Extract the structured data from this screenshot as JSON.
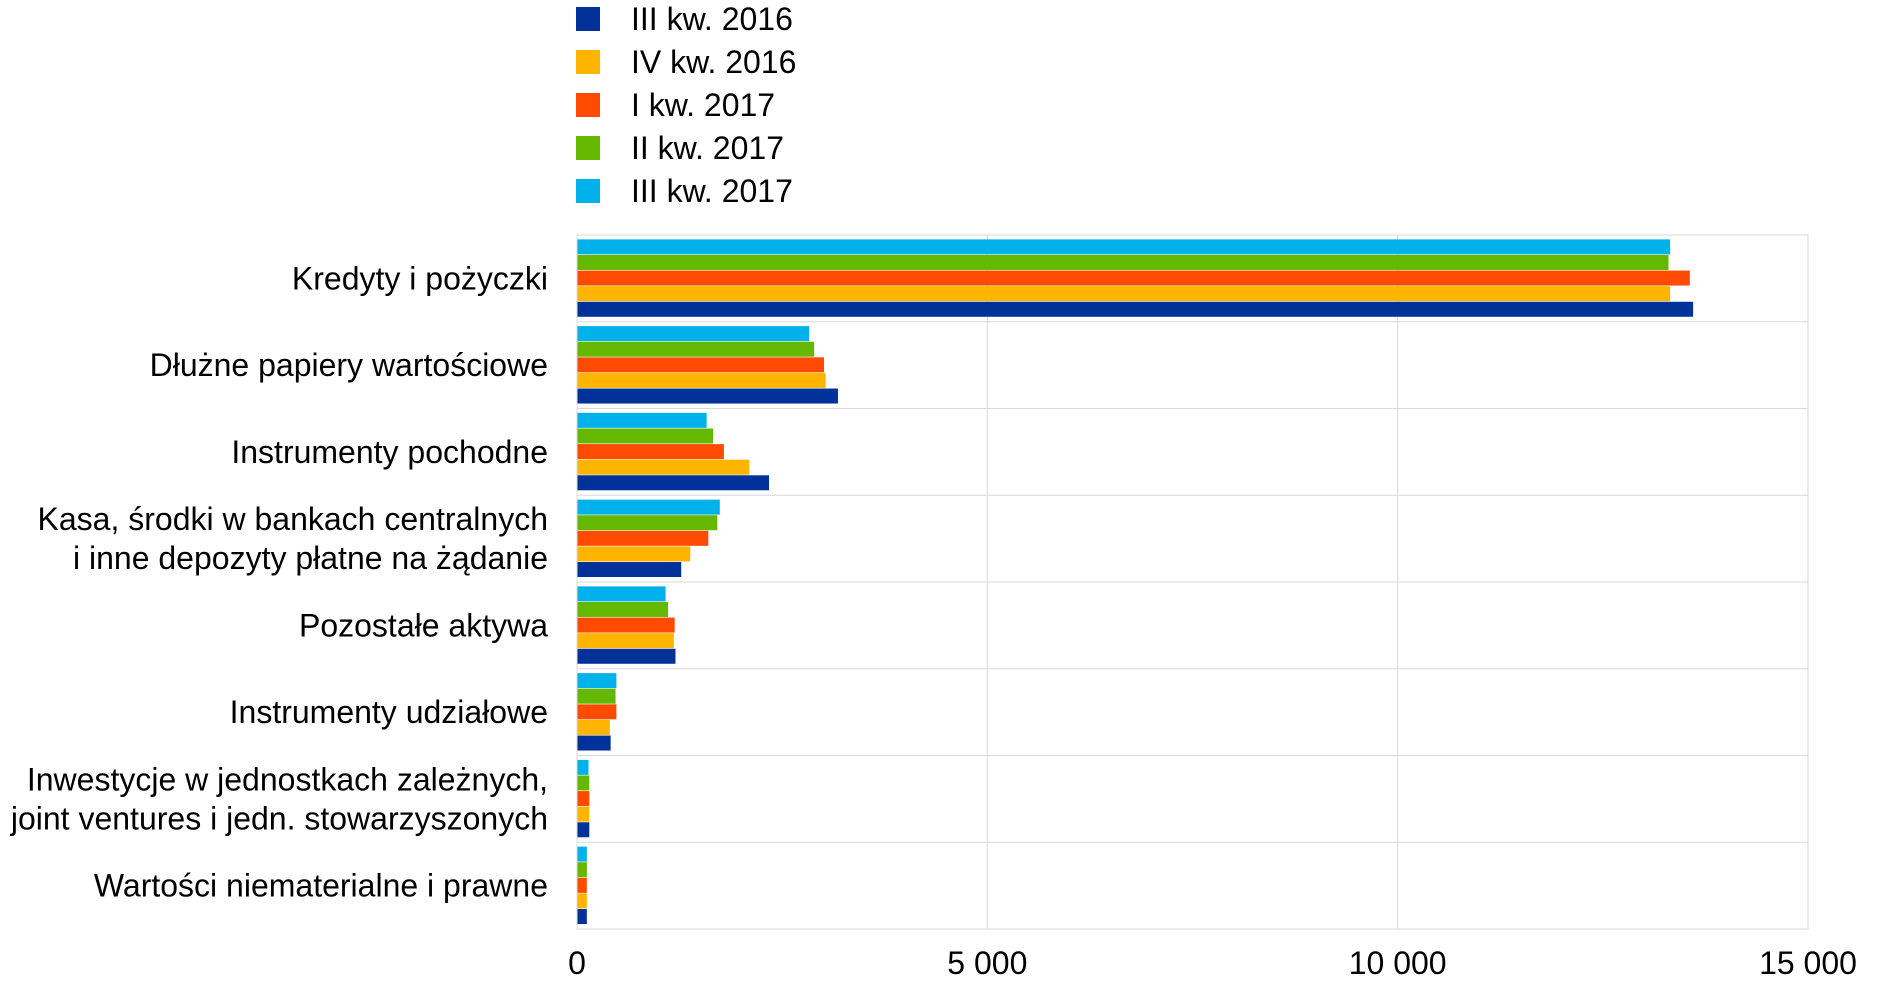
{
  "chart_data": {
    "type": "bar",
    "orientation": "horizontal",
    "categories": [
      [
        "Kredyty i pożyczki"
      ],
      [
        "Dłużne papiery wartościowe"
      ],
      [
        "Instrumenty pochodne"
      ],
      [
        "Kasa, środki w bankach centralnych",
        "i inne depozyty płatne na żądanie"
      ],
      [
        "Pozostałe aktywa"
      ],
      [
        "Instrumenty udziałowe"
      ],
      [
        "Inwestycje w jednostkach zależnych,",
        "joint ventures i jedn. stowarzyszonych"
      ],
      [
        "Wartości niematerialne i prawne"
      ]
    ],
    "series": [
      {
        "name": "III kw. 2016",
        "color": "#003299",
        "values": [
          13600,
          3180,
          2340,
          1270,
          1200,
          410,
          150,
          120
        ]
      },
      {
        "name": "IV kw. 2016",
        "color": "#FFB400",
        "values": [
          13320,
          3030,
          2100,
          1380,
          1180,
          400,
          150,
          120
        ]
      },
      {
        "name": "I kw. 2017",
        "color": "#FF4B00",
        "values": [
          13560,
          3010,
          1790,
          1600,
          1190,
          480,
          150,
          120
        ]
      },
      {
        "name": "II kw. 2017",
        "color": "#65B800",
        "values": [
          13300,
          2890,
          1660,
          1710,
          1110,
          470,
          150,
          120
        ]
      },
      {
        "name": "III kw. 2017",
        "color": "#00B1EA",
        "values": [
          13320,
          2830,
          1580,
          1740,
          1080,
          480,
          140,
          120
        ]
      }
    ],
    "xlim": [
      0,
      15000
    ],
    "xticks": [
      0,
      5000,
      10000,
      15000
    ],
    "xtick_labels": [
      "0",
      "5 000",
      "10 000",
      "15 000"
    ],
    "grid": "vertical",
    "legend_position": "top",
    "title": "",
    "xlabel": "",
    "ylabel": ""
  }
}
